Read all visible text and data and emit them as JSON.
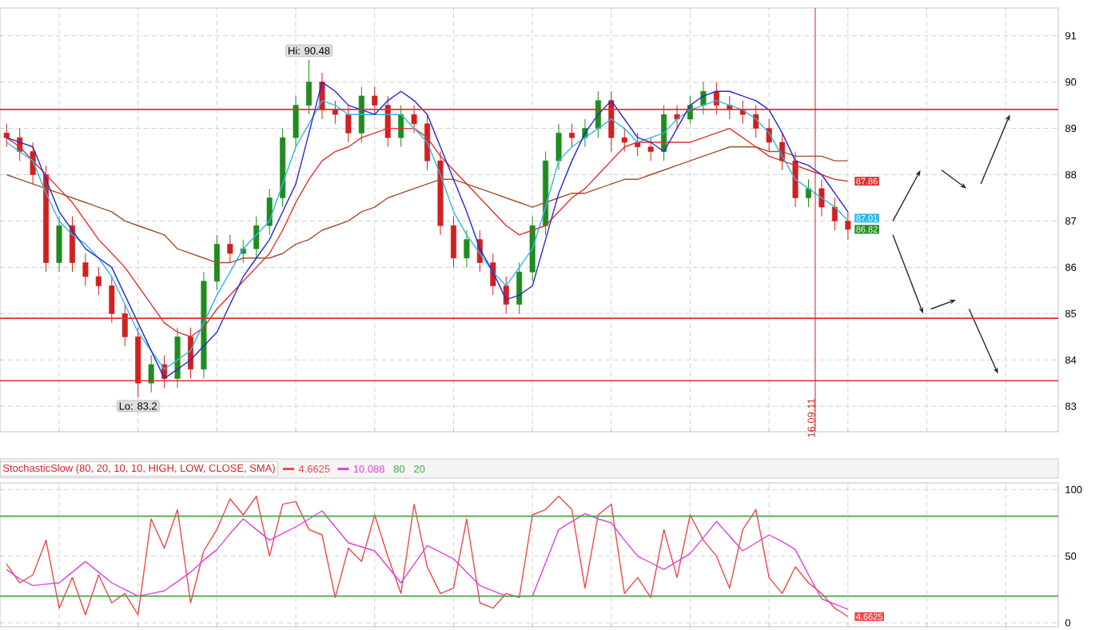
{
  "chart_data": [
    {
      "type": "candlestick",
      "ylim": [
        82.45,
        91.6
      ],
      "yticks": [
        83,
        84,
        85,
        86,
        87,
        88,
        89,
        90,
        91
      ],
      "grid": true,
      "categories": [
        null,
        null,
        null,
        null,
        null,
        null,
        null,
        null,
        null,
        null,
        null,
        null,
        null,
        null,
        null,
        null,
        null,
        null,
        null,
        null,
        null,
        null,
        null,
        null,
        null,
        null,
        null,
        null,
        null,
        null,
        null,
        null,
        null,
        null,
        null,
        null,
        null,
        null,
        null,
        null,
        null,
        null,
        null,
        null,
        null,
        null,
        null,
        null,
        null,
        null,
        null,
        null,
        null,
        null,
        null,
        null,
        null,
        null,
        null,
        null,
        null,
        null,
        null,
        null,
        null
      ],
      "ohlc": [
        [
          88.9,
          89.1,
          88.6,
          88.8
        ],
        [
          88.8,
          89.0,
          88.3,
          88.5
        ],
        [
          88.5,
          88.7,
          87.8,
          88.0
        ],
        [
          88.0,
          88.2,
          85.9,
          86.1
        ],
        [
          86.1,
          87.1,
          85.9,
          86.9
        ],
        [
          86.9,
          87.1,
          85.9,
          86.1
        ],
        [
          86.1,
          86.3,
          85.6,
          85.8
        ],
        [
          85.8,
          86.0,
          85.4,
          85.6
        ],
        [
          85.6,
          85.8,
          84.8,
          85.0
        ],
        [
          85.0,
          85.2,
          84.3,
          84.5
        ],
        [
          84.5,
          84.7,
          83.2,
          83.5
        ],
        [
          83.5,
          84.1,
          83.3,
          83.9
        ],
        [
          83.9,
          84.1,
          83.4,
          83.6
        ],
        [
          83.6,
          84.7,
          83.4,
          84.5
        ],
        [
          84.5,
          84.7,
          83.6,
          83.8
        ],
        [
          83.8,
          85.9,
          83.6,
          85.7
        ],
        [
          85.7,
          86.7,
          85.5,
          86.5
        ],
        [
          86.5,
          86.7,
          86.1,
          86.3
        ],
        [
          86.3,
          86.6,
          86.1,
          86.4
        ],
        [
          86.4,
          87.1,
          86.2,
          86.9
        ],
        [
          86.9,
          87.7,
          86.7,
          87.5
        ],
        [
          87.5,
          89.0,
          87.3,
          88.8
        ],
        [
          88.8,
          89.7,
          88.6,
          89.5
        ],
        [
          89.5,
          90.48,
          89.3,
          90.0
        ],
        [
          90.0,
          90.2,
          89.2,
          89.4
        ],
        [
          89.4,
          89.6,
          89.1,
          89.3
        ],
        [
          89.3,
          89.5,
          88.7,
          88.9
        ],
        [
          88.9,
          89.9,
          88.7,
          89.7
        ],
        [
          89.7,
          89.9,
          89.3,
          89.5
        ],
        [
          89.5,
          89.7,
          88.6,
          88.8
        ],
        [
          88.8,
          89.5,
          88.6,
          89.3
        ],
        [
          89.3,
          89.5,
          88.9,
          89.1
        ],
        [
          89.1,
          89.3,
          88.1,
          88.3
        ],
        [
          88.3,
          88.5,
          86.7,
          86.9
        ],
        [
          86.9,
          87.1,
          86.0,
          86.2
        ],
        [
          86.2,
          86.8,
          86.0,
          86.6
        ],
        [
          86.6,
          86.8,
          85.9,
          86.1
        ],
        [
          86.1,
          86.3,
          85.4,
          85.6
        ],
        [
          85.6,
          85.8,
          85.0,
          85.2
        ],
        [
          85.2,
          86.1,
          85.0,
          85.9
        ],
        [
          85.9,
          87.1,
          85.7,
          86.9
        ],
        [
          86.9,
          88.5,
          86.7,
          88.3
        ],
        [
          88.3,
          89.1,
          88.1,
          88.9
        ],
        [
          88.9,
          89.1,
          88.6,
          88.8
        ],
        [
          88.8,
          89.2,
          88.6,
          89.0
        ],
        [
          89.0,
          89.8,
          88.8,
          89.6
        ],
        [
          89.6,
          89.8,
          88.5,
          88.8
        ],
        [
          88.8,
          89.0,
          88.5,
          88.7
        ],
        [
          88.7,
          88.9,
          88.4,
          88.6
        ],
        [
          88.6,
          88.8,
          88.3,
          88.5
        ],
        [
          88.5,
          89.5,
          88.3,
          89.3
        ],
        [
          89.3,
          89.5,
          89.0,
          89.2
        ],
        [
          89.2,
          89.7,
          89.1,
          89.5
        ],
        [
          89.5,
          90.0,
          89.3,
          89.8
        ],
        [
          89.8,
          90.0,
          89.3,
          89.5
        ],
        [
          89.5,
          89.7,
          89.2,
          89.4
        ],
        [
          89.4,
          89.6,
          89.1,
          89.3
        ],
        [
          89.3,
          89.5,
          88.8,
          89.0
        ],
        [
          89.0,
          89.2,
          88.5,
          88.7
        ],
        [
          88.7,
          88.9,
          88.1,
          88.3
        ],
        [
          88.3,
          88.5,
          87.3,
          87.5
        ],
        [
          87.5,
          87.9,
          87.3,
          87.7
        ],
        [
          87.7,
          87.9,
          87.1,
          87.3
        ],
        [
          87.3,
          87.5,
          86.8,
          87.0
        ],
        [
          87.0,
          87.2,
          86.6,
          86.82
        ]
      ],
      "value_labels": [
        null,
        null,
        null,
        null,
        null,
        null,
        null,
        null,
        null,
        null,
        null,
        null,
        null,
        null,
        null,
        null,
        null,
        null,
        null,
        null,
        null,
        null,
        null,
        null,
        null,
        null,
        null,
        null,
        null,
        null,
        null,
        null,
        null,
        null,
        null,
        null,
        null,
        null,
        null,
        null,
        null,
        null,
        null,
        null,
        null,
        null,
        null,
        null,
        null,
        null,
        null,
        null,
        null,
        null,
        null,
        null,
        null,
        null,
        null,
        null,
        null,
        null,
        null,
        null,
        "86.82"
      ],
      "series": [
        {
          "type": "line",
          "color": "#a0522d",
          "values": [
            88.0,
            87.9,
            87.8,
            87.7,
            87.6,
            87.5,
            87.4,
            87.3,
            87.2,
            87.0,
            86.9,
            86.8,
            86.7,
            86.4,
            86.3,
            86.2,
            86.1,
            86.1,
            86.2,
            86.2,
            86.2,
            86.3,
            86.5,
            86.6,
            86.8,
            86.9,
            87.0,
            87.2,
            87.3,
            87.5,
            87.6,
            87.7,
            87.8,
            87.9,
            87.9,
            87.8,
            87.7,
            87.6,
            87.5,
            87.4,
            87.3,
            87.4,
            87.5,
            87.6,
            87.6,
            87.7,
            87.8,
            87.9,
            87.9,
            88.0,
            88.1,
            88.2,
            88.3,
            88.4,
            88.5,
            88.6,
            88.6,
            88.6,
            88.5,
            88.5,
            88.4,
            88.4,
            88.4,
            88.3,
            88.3
          ]
        },
        {
          "type": "line",
          "color": "#e03030",
          "values": [
            88.8,
            88.6,
            88.3,
            88.0,
            87.7,
            87.4,
            87.0,
            86.6,
            86.3,
            86.0,
            85.6,
            85.2,
            84.8,
            84.6,
            84.5,
            84.7,
            85.1,
            85.4,
            85.7,
            86.0,
            86.3,
            86.8,
            87.4,
            87.9,
            88.3,
            88.5,
            88.6,
            88.8,
            88.9,
            89.0,
            89.0,
            89.0,
            88.8,
            88.4,
            88.1,
            87.8,
            87.5,
            87.2,
            86.9,
            86.7,
            86.8,
            86.9,
            87.2,
            87.5,
            87.7,
            88.0,
            88.3,
            88.6,
            88.7,
            88.7,
            88.7,
            88.7,
            88.7,
            88.8,
            88.9,
            89.0,
            88.8,
            88.6,
            88.4,
            88.3,
            88.2,
            88.1,
            88.0,
            87.9,
            87.86
          ],
          "value_labels": [
            null,
            null,
            null,
            null,
            null,
            null,
            null,
            null,
            null,
            null,
            null,
            null,
            null,
            null,
            null,
            null,
            null,
            null,
            null,
            null,
            null,
            null,
            null,
            null,
            null,
            null,
            null,
            null,
            null,
            null,
            null,
            null,
            null,
            null,
            null,
            null,
            null,
            null,
            null,
            null,
            null,
            null,
            null,
            null,
            null,
            null,
            null,
            null,
            null,
            null,
            null,
            null,
            null,
            null,
            null,
            null,
            null,
            null,
            null,
            null,
            null,
            null,
            null,
            null,
            "87.86"
          ]
        },
        {
          "type": "line",
          "color": "#30b8e8",
          "values": [
            88.7,
            88.5,
            88.3,
            87.6,
            87.0,
            86.7,
            86.5,
            86.2,
            85.8,
            85.2,
            84.6,
            84.2,
            83.8,
            84.0,
            84.2,
            84.8,
            85.4,
            85.9,
            86.4,
            86.7,
            87.0,
            87.8,
            88.6,
            89.1,
            89.6,
            89.5,
            89.3,
            89.3,
            89.3,
            89.3,
            89.3,
            89.0,
            88.7,
            88.0,
            87.2,
            86.7,
            86.3,
            85.9,
            85.6,
            86.0,
            86.4,
            87.3,
            88.3,
            88.6,
            88.8,
            89.0,
            89.2,
            89.0,
            88.7,
            88.8,
            88.9,
            89.2,
            89.4,
            89.5,
            89.6,
            89.5,
            89.4,
            89.2,
            88.9,
            88.4,
            87.9,
            87.7,
            87.5,
            87.3,
            87.01
          ],
          "value_labels": [
            null,
            null,
            null,
            null,
            null,
            null,
            null,
            null,
            null,
            null,
            null,
            null,
            null,
            null,
            null,
            null,
            null,
            null,
            null,
            null,
            null,
            null,
            null,
            null,
            null,
            null,
            null,
            null,
            null,
            null,
            null,
            null,
            null,
            null,
            null,
            null,
            null,
            null,
            null,
            null,
            null,
            null,
            null,
            null,
            null,
            null,
            null,
            null,
            null,
            null,
            null,
            null,
            null,
            null,
            null,
            null,
            null,
            null,
            null,
            null,
            null,
            null,
            null,
            null,
            "87.01"
          ]
        },
        {
          "type": "line",
          "color": "#2828d0",
          "values": [
            88.8,
            88.7,
            88.6,
            87.9,
            87.2,
            86.8,
            86.4,
            86.2,
            86.0,
            85.4,
            84.8,
            84.2,
            83.6,
            83.8,
            84.0,
            84.3,
            84.6,
            85.2,
            85.8,
            86.2,
            86.6,
            87.2,
            87.8,
            88.9,
            90.0,
            89.8,
            89.5,
            89.4,
            89.3,
            89.6,
            89.8,
            89.6,
            89.3,
            88.6,
            87.9,
            87.2,
            86.4,
            85.9,
            85.3,
            85.4,
            85.6,
            86.6,
            87.6,
            88.3,
            88.9,
            89.3,
            89.6,
            89.2,
            88.8,
            88.7,
            88.5,
            89.0,
            89.5,
            89.7,
            89.8,
            89.8,
            89.7,
            89.6,
            89.4,
            88.9,
            88.3,
            88.2,
            88.0,
            87.6,
            87.2
          ]
        }
      ],
      "ref_lines": [
        {
          "axis": "y",
          "value": 89.41,
          "color": "#e03030"
        },
        {
          "axis": "y",
          "value": 84.9,
          "color": "#e03030"
        },
        {
          "axis": "y",
          "value": 83.55,
          "color": "#e03030"
        }
      ],
      "annotations": [
        {
          "text": "Hi: 90.48",
          "y": 90.48
        },
        {
          "text": "Lo: 83.2",
          "y": 83.2
        },
        "16.09.11"
      ]
    },
    {
      "type": "line",
      "title": "StochasticSlow (80, 20, 10, 10, HIGH, LOW, CLOSE, SMA)",
      "ylim": [
        -3,
        105
      ],
      "yticks": [
        0,
        50,
        100
      ],
      "grid": true,
      "tick_labels": "y",
      "legend": "top left",
      "categories": [
        null,
        null,
        null,
        null,
        null,
        null,
        null,
        null,
        null,
        null,
        null,
        null,
        null,
        null,
        null,
        null,
        null,
        null,
        null,
        null,
        null,
        null,
        null,
        null,
        null,
        null,
        null,
        null,
        null,
        null,
        null,
        null,
        null,
        null,
        null,
        null,
        null,
        null,
        null,
        null,
        null,
        null,
        null,
        null,
        null,
        null,
        null,
        null,
        null,
        null,
        null,
        null,
        null,
        null,
        null,
        null,
        null,
        null,
        null,
        null,
        null,
        null,
        null,
        null,
        null
      ],
      "series": [
        {
          "name": "4.6625",
          "color": "#f04848",
          "values": [
            44,
            30,
            36,
            62,
            11,
            34,
            6,
            36,
            15,
            22,
            6,
            78,
            56,
            85,
            15,
            54,
            70,
            93,
            81,
            95,
            50,
            89,
            91,
            70,
            66,
            19,
            56,
            46,
            81,
            50,
            22,
            89,
            42,
            22,
            26,
            78,
            15,
            11,
            22,
            19,
            81,
            85,
            95,
            85,
            26,
            81,
            89,
            22,
            34,
            19,
            70,
            34,
            81,
            62,
            50,
            26,
            70,
            85,
            34,
            22,
            42,
            30,
            22,
            11,
            4.6625
          ],
          "value_labels": [
            null,
            null,
            null,
            null,
            null,
            null,
            null,
            null,
            null,
            null,
            null,
            null,
            null,
            null,
            null,
            null,
            null,
            null,
            null,
            null,
            null,
            null,
            null,
            null,
            null,
            null,
            null,
            null,
            null,
            null,
            null,
            null,
            null,
            null,
            null,
            null,
            null,
            null,
            null,
            null,
            null,
            null,
            null,
            null,
            null,
            null,
            null,
            null,
            null,
            null,
            null,
            null,
            null,
            null,
            null,
            null,
            null,
            null,
            null,
            null,
            null,
            null,
            null,
            null,
            "4.6625"
          ]
        },
        {
          "name": "10.088",
          "color": "#e040e0",
          "values": [
            40,
            33,
            28,
            29,
            30,
            38,
            46,
            38,
            30,
            25,
            20,
            22,
            24,
            31,
            38,
            47,
            55,
            67,
            78,
            70,
            62,
            67,
            72,
            78,
            84,
            72,
            60,
            57,
            54,
            42,
            30,
            44,
            58,
            53,
            48,
            38,
            28,
            24,
            20,
            20,
            20,
            45,
            70,
            76,
            82,
            78,
            75,
            62,
            50,
            45,
            40,
            46,
            52,
            64,
            76,
            65,
            54,
            60,
            66,
            61,
            55,
            36,
            18,
            14,
            10.1
          ]
        }
      ],
      "ref_lines": [
        {
          "axis": "y",
          "value": 80,
          "label": "80",
          "color": "#40a840"
        },
        {
          "axis": "y",
          "value": 20,
          "label": "20",
          "color": "#40a840"
        }
      ]
    }
  ]
}
